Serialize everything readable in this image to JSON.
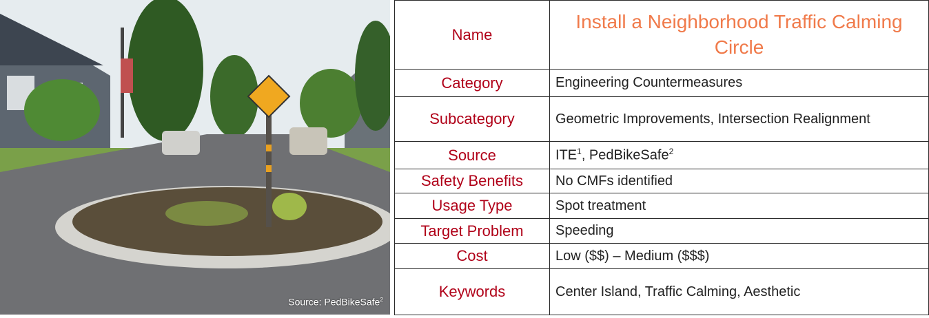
{
  "photo": {
    "caption": "Source: PedBikeSafe",
    "caption_sup": "2"
  },
  "table": {
    "rows": [
      {
        "label": "Name",
        "value": "Install a Neighborhood Traffic Calming Circle"
      },
      {
        "label": "Category",
        "value": "Engineering Countermeasures"
      },
      {
        "label": "Subcategory",
        "value": "Geometric Improvements, Intersection Realignment"
      },
      {
        "label": "Source",
        "value": [
          {
            "text": "ITE",
            "sup": "1"
          },
          {
            "text": ", PedBikeSafe",
            "sup": "2"
          }
        ]
      },
      {
        "label": "Safety Benefits",
        "value": "No CMFs identified"
      },
      {
        "label": "Usage Type",
        "value": "Spot treatment"
      },
      {
        "label": "Target Problem",
        "value": "Speeding"
      },
      {
        "label": "Cost",
        "value": "Low ($$) – Medium ($$$)"
      },
      {
        "label": "Keywords",
        "value": "Center Island, Traffic Calming, Aesthetic"
      }
    ]
  }
}
